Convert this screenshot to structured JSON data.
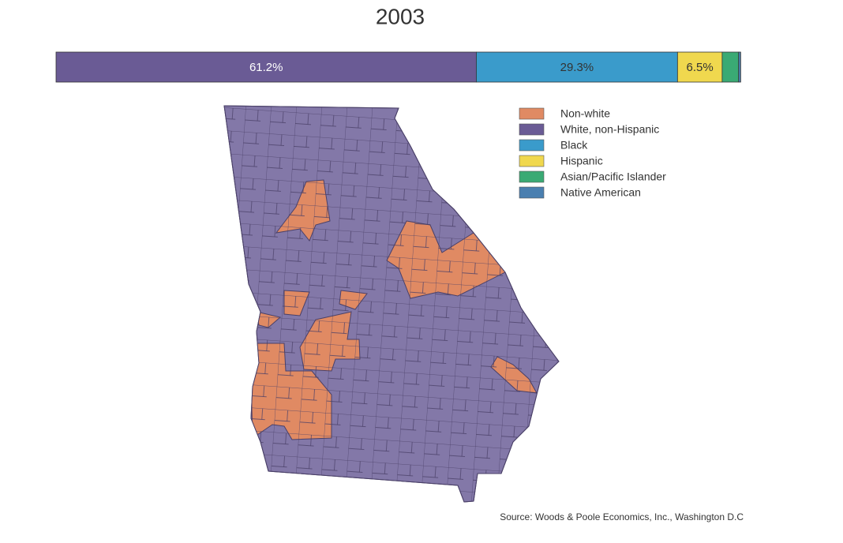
{
  "chart_data": {
    "type": "bar",
    "orientation": "horizontal",
    "stacked": true,
    "title": "2003",
    "xlim": [
      0,
      100
    ],
    "series": [
      {
        "name": "White, non-Hispanic",
        "color": "#6a5b95",
        "values": [
          61.2
        ],
        "value_labels": [
          "61.2%"
        ]
      },
      {
        "name": "Black",
        "color": "#3a9bcb",
        "values": [
          29.3
        ],
        "value_labels": [
          "29.3%"
        ]
      },
      {
        "name": "Hispanic",
        "color": "#f0d84e",
        "values": [
          6.5
        ],
        "value_labels": [
          "6.5%"
        ]
      },
      {
        "name": "Asian/Pacific Islander",
        "color": "#3aaa74",
        "values": [
          2.4
        ]
      },
      {
        "name": "Native American",
        "color": "#4a7fb0",
        "values": [
          0.3
        ]
      }
    ]
  },
  "map": {
    "extra_legend": {
      "name": "Non-white",
      "color": "#e08a63"
    },
    "region_color": "#8378a8"
  },
  "source": "Source: Woods & Poole Economics, Inc., Washington D.C"
}
